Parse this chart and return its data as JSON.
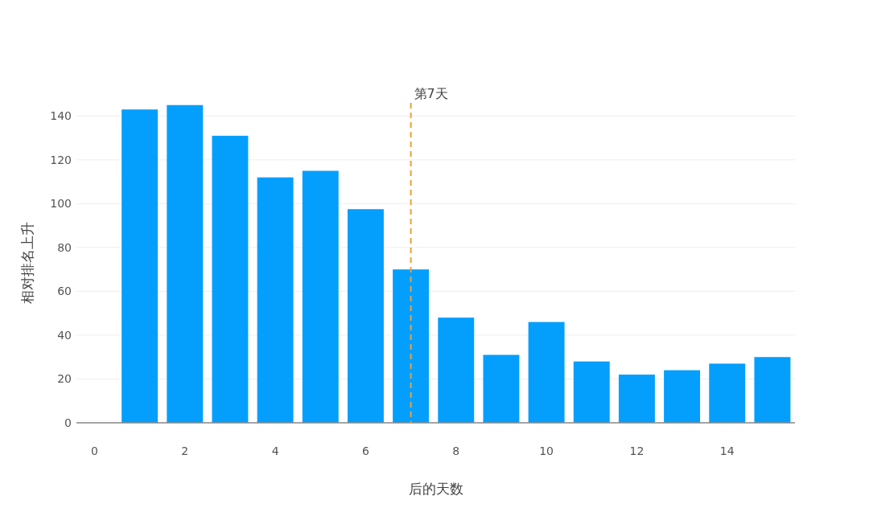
{
  "chart_data": {
    "type": "bar",
    "xlabel": "后的天数",
    "ylabel": "相对排名上升",
    "x": [
      1,
      2,
      3,
      4,
      5,
      6,
      7,
      8,
      9,
      10,
      11,
      12,
      13,
      14,
      15
    ],
    "values": [
      143,
      145,
      131,
      112,
      115,
      97.5,
      70,
      48,
      31,
      46,
      28,
      22,
      24,
      27,
      30
    ],
    "color": "#049ffd",
    "xlim": [
      -0.4,
      15.5
    ],
    "xticks": [
      0,
      2,
      4,
      6,
      8,
      10,
      12,
      14
    ],
    "ylim": [
      0,
      146
    ],
    "yticks": [
      0,
      20,
      40,
      60,
      80,
      100,
      120,
      140
    ],
    "grid": "y",
    "ref_lines": [
      {
        "axis": "x",
        "value": 7,
        "label": "第7天",
        "color": "#f0a030",
        "line_style": "dashed"
      }
    ]
  }
}
